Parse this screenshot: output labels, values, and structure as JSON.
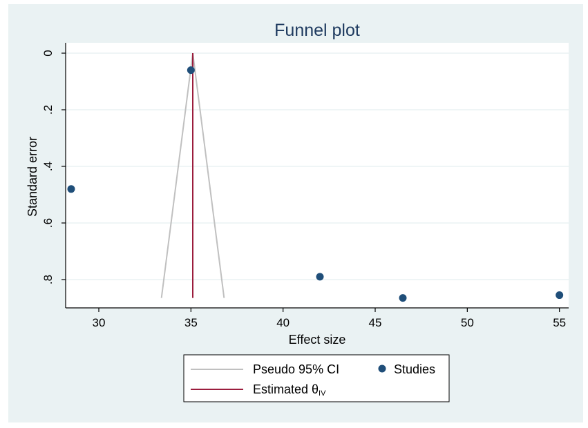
{
  "chart_data": {
    "type": "scatter",
    "title": "Funnel plot",
    "xlabel": "Effect size",
    "ylabel": "Standard error",
    "xlim": [
      28.2,
      55.5
    ],
    "ylim": [
      0,
      0.9
    ],
    "y_reversed": true,
    "x_ticks": [
      "30",
      "35",
      "40",
      "45",
      "50",
      "55"
    ],
    "y_ticks": [
      "0",
      ".2",
      ".4",
      ".6",
      ".8"
    ],
    "grid": true,
    "legend_position": "bottom",
    "series": [
      {
        "name": "Studies",
        "type": "scatter",
        "color": "#1f4e79",
        "points": [
          {
            "x": 28.5,
            "y": 0.48
          },
          {
            "x": 35.0,
            "y": 0.06
          },
          {
            "x": 42.0,
            "y": 0.79
          },
          {
            "x": 46.5,
            "y": 0.865
          },
          {
            "x": 55.0,
            "y": 0.855
          }
        ]
      },
      {
        "name": "Pseudo 95% CI",
        "type": "line",
        "color": "#c0c0c0",
        "lines": [
          [
            {
              "x": 33.4,
              "y": 0.865
            },
            {
              "x": 35.1,
              "y": 0.0
            }
          ],
          [
            {
              "x": 35.1,
              "y": 0.0
            },
            {
              "x": 36.8,
              "y": 0.865
            }
          ]
        ]
      },
      {
        "name": "Estimated θIV",
        "type": "vline",
        "color": "#9b1d3d",
        "x": 35.1,
        "y_range": [
          0,
          0.865
        ]
      }
    ],
    "legend": {
      "ci_label": "Pseudo 95% CI",
      "studies_label": "Studies",
      "theta_label_main": "Estimated θ",
      "theta_label_sub": "IV"
    }
  },
  "colors": {
    "outer_background": "#eaf2f3",
    "plot_background": "#ffffff",
    "grid": "#eaf2f3",
    "title": "#1e3a5f",
    "axis": "#000000"
  }
}
